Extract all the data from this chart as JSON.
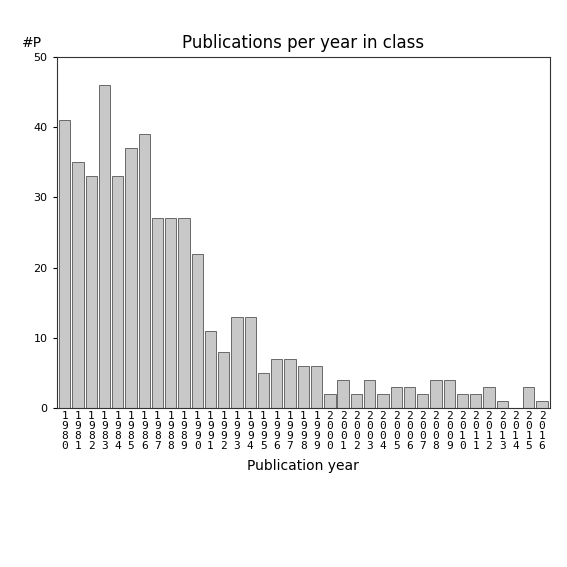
{
  "title": "Publications per year in class",
  "xlabel": "Publication year",
  "ylabel": "#P",
  "ylim": [
    0,
    50
  ],
  "yticks": [
    0,
    10,
    20,
    30,
    40,
    50
  ],
  "years": [
    "1\n9\n8\n0",
    "1\n9\n8\n1",
    "1\n9\n8\n2",
    "1\n9\n8\n3",
    "1\n9\n8\n4",
    "1\n9\n8\n5",
    "1\n9\n8\n6",
    "1\n9\n8\n7",
    "1\n9\n8\n8",
    "1\n9\n8\n9",
    "1\n9\n9\n0",
    "1\n9\n9\n1",
    "1\n9\n9\n2",
    "1\n9\n9\n3",
    "1\n9\n9\n4",
    "1\n9\n9\n5",
    "1\n9\n9\n6",
    "1\n9\n9\n7",
    "1\n9\n9\n8",
    "1\n9\n9\n9",
    "2\n0\n0\n0",
    "2\n0\n0\n1",
    "2\n0\n0\n2",
    "2\n0\n0\n3",
    "2\n0\n0\n4",
    "2\n0\n0\n5",
    "2\n0\n0\n6",
    "2\n0\n0\n7",
    "2\n0\n0\n8",
    "2\n0\n0\n9",
    "2\n0\n1\n0",
    "2\n0\n1\n1",
    "2\n0\n1\n2",
    "2\n0\n1\n3",
    "2\n0\n1\n4",
    "2\n0\n1\n5",
    "2\n0\n1\n6"
  ],
  "values": [
    41,
    35,
    33,
    46,
    33,
    37,
    39,
    27,
    27,
    27,
    22,
    11,
    8,
    13,
    13,
    5,
    7,
    7,
    6,
    6,
    2,
    4,
    2,
    4,
    2,
    3,
    3,
    2,
    4,
    4,
    2,
    2,
    3,
    1,
    0,
    3,
    1
  ],
  "bar_color": "#c8c8c8",
  "bar_edge_color": "#555555",
  "bar_edge_width": 0.6,
  "background_color": "#ffffff",
  "title_fontsize": 12,
  "xlabel_fontsize": 10,
  "ylabel_fontsize": 10,
  "tick_fontsize": 8
}
